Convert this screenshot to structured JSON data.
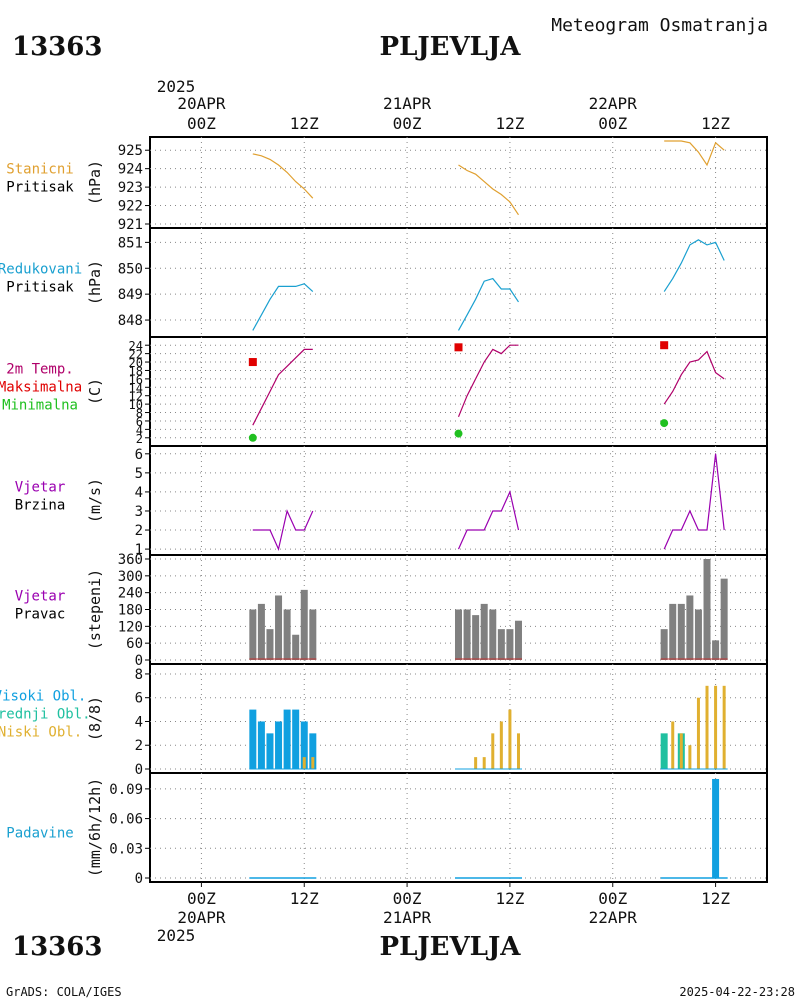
{
  "header": {
    "station_id": "13363",
    "station_name": "PLJEVLJA",
    "meteogram_title": "Meteogram Osmatranja",
    "footer_left": "GrADS: COLA/IGES",
    "footer_right": "2025-04-22-23:28"
  },
  "time_axis": {
    "year": "2025",
    "top_dates": [
      "20APR",
      "21APR",
      "22APR"
    ],
    "hour_labels": [
      "00Z",
      "12Z",
      "00Z",
      "12Z",
      "00Z",
      "12Z"
    ],
    "bottom_dates": [
      "20APR",
      "21APR",
      "22APR"
    ],
    "x_range_hours": [
      -6,
      66
    ]
  },
  "colors": {
    "pressure": "#e0a030",
    "reduced": "#1aa0d0",
    "tmax": "#e00000",
    "tmin": "#20c020",
    "tcurve": "#b0006a",
    "wind": "#9a00b0",
    "winddir": "#808080",
    "high_cloud": "#10a0e0",
    "mid_cloud": "#20c0a0",
    "low_cloud": "#e0b030",
    "precip": "#10a0e0",
    "pad_label": "#1aa0d0"
  },
  "chart_data": [
    {
      "type": "line",
      "labels": [
        "Stanicni",
        "Pritisak"
      ],
      "unit": "(hPa)",
      "ylim": [
        921,
        925.5
      ],
      "yticks": [
        921,
        922,
        923,
        924,
        925
      ],
      "series": [
        {
          "x": [
            6,
            7,
            8,
            9,
            10,
            11,
            12,
            13
          ],
          "y": [
            924.8,
            924.7,
            924.5,
            924.2,
            923.8,
            923.3,
            922.9,
            922.4
          ]
        },
        {
          "x": [
            30,
            31,
            32,
            33,
            34,
            35,
            36,
            37
          ],
          "y": [
            924.2,
            923.9,
            923.7,
            923.3,
            922.9,
            922.6,
            922.2,
            921.5
          ]
        },
        {
          "x": [
            54,
            55,
            56,
            57,
            58,
            59,
            60,
            61
          ],
          "y": [
            925.5,
            925.5,
            925.5,
            925.4,
            924.9,
            924.2,
            925.4,
            925.0
          ]
        }
      ]
    },
    {
      "type": "line",
      "labels": [
        "Redukovani",
        "Pritisak"
      ],
      "unit": "(hPa)",
      "ylim": [
        847.5,
        851.4
      ],
      "yticks": [
        848,
        849,
        850,
        851
      ],
      "series": [
        {
          "x": [
            6,
            7,
            8,
            9,
            10,
            11,
            12,
            13
          ],
          "y": [
            847.6,
            848.2,
            848.8,
            849.3,
            849.3,
            849.3,
            849.4,
            849.1
          ]
        },
        {
          "x": [
            30,
            31,
            32,
            33,
            34,
            35,
            36,
            37
          ],
          "y": [
            847.6,
            848.2,
            848.8,
            849.5,
            849.6,
            849.2,
            849.2,
            848.7
          ]
        },
        {
          "x": [
            54,
            55,
            56,
            57,
            58,
            59,
            60,
            61
          ],
          "y": [
            849.1,
            849.6,
            850.2,
            850.9,
            851.1,
            850.9,
            851.0,
            850.3
          ]
        }
      ]
    },
    {
      "type": "line",
      "labels": [
        "2m Temp.",
        "Maksimalna",
        "Minimalna"
      ],
      "unit": "(C)",
      "ylim": [
        1,
        25
      ],
      "yticks": [
        2,
        4,
        6,
        8,
        10,
        12,
        14,
        16,
        18,
        20,
        22,
        24
      ],
      "series": [
        {
          "x": [
            6,
            7,
            8,
            9,
            10,
            11,
            12,
            13
          ],
          "y": [
            5,
            9,
            13,
            17,
            19,
            21,
            23,
            23
          ]
        },
        {
          "x": [
            30,
            31,
            32,
            33,
            34,
            35,
            36,
            37
          ],
          "y": [
            7,
            12,
            16,
            20,
            23,
            22,
            24,
            24
          ]
        },
        {
          "x": [
            54,
            55,
            56,
            57,
            58,
            59,
            60,
            61
          ],
          "y": [
            10,
            13,
            17,
            20,
            20.5,
            22.5,
            17.5,
            16
          ]
        }
      ],
      "tmax": {
        "x": [
          6,
          30,
          54
        ],
        "y": [
          20,
          23.5,
          24
        ]
      },
      "tmin": {
        "x": [
          6,
          30,
          54
        ],
        "y": [
          2,
          3,
          5.5
        ]
      }
    },
    {
      "type": "line",
      "labels": [
        "Vjetar",
        "Brzina"
      ],
      "unit": "(m/s)",
      "ylim": [
        0.9,
        6.2
      ],
      "yticks": [
        1,
        2,
        3,
        4,
        5,
        6
      ],
      "series": [
        {
          "x": [
            6,
            7,
            8,
            9,
            10,
            11,
            12,
            13
          ],
          "y": [
            2,
            2,
            2,
            1,
            3,
            2,
            2,
            3
          ]
        },
        {
          "x": [
            30,
            31,
            32,
            33,
            34,
            35,
            36,
            37
          ],
          "y": [
            1,
            2,
            2,
            2,
            3,
            3,
            4,
            2
          ]
        },
        {
          "x": [
            54,
            55,
            56,
            57,
            58,
            59,
            60,
            61
          ],
          "y": [
            1,
            2,
            2,
            3,
            2,
            2,
            6,
            2
          ]
        }
      ]
    },
    {
      "type": "bar",
      "labels": [
        "Vjetar",
        "Pravac"
      ],
      "unit": "(stepeni)",
      "ylim": [
        0,
        360
      ],
      "yticks": [
        0,
        60,
        120,
        180,
        240,
        300,
        360
      ],
      "series": [
        {
          "x": [
            6,
            7,
            8,
            9,
            10,
            11,
            12,
            13
          ],
          "y": [
            180,
            200,
            110,
            230,
            180,
            90,
            250,
            180
          ]
        },
        {
          "x": [
            30,
            31,
            32,
            33,
            34,
            35,
            36,
            37
          ],
          "y": [
            180,
            180,
            160,
            200,
            180,
            110,
            110,
            140
          ]
        },
        {
          "x": [
            54,
            55,
            56,
            57,
            58,
            59,
            60,
            61
          ],
          "y": [
            110,
            200,
            200,
            230,
            180,
            360,
            70,
            290
          ]
        }
      ]
    },
    {
      "type": "bar",
      "labels": [
        "Visoki Obl.",
        "Srednji Obl.",
        "Niski Obl."
      ],
      "unit": "(8/8)",
      "ylim": [
        0,
        8.5
      ],
      "yticks": [
        0,
        2,
        4,
        6,
        8
      ],
      "high": [
        {
          "x": 6,
          "y": 5
        },
        {
          "x": 7,
          "y": 4
        },
        {
          "x": 8,
          "y": 3
        },
        {
          "x": 9,
          "y": 4
        },
        {
          "x": 10,
          "y": 5
        },
        {
          "x": 11,
          "y": 5
        },
        {
          "x": 12,
          "y": 4
        },
        {
          "x": 13,
          "y": 3
        }
      ],
      "mid": [
        {
          "x": 54,
          "y": 3
        },
        {
          "x": 56,
          "y": 3
        }
      ],
      "low": [
        {
          "x": 12,
          "y": 1
        },
        {
          "x": 13,
          "y": 1
        },
        {
          "x": 32,
          "y": 1
        },
        {
          "x": 33,
          "y": 1
        },
        {
          "x": 34,
          "y": 3
        },
        {
          "x": 35,
          "y": 4
        },
        {
          "x": 36,
          "y": 5
        },
        {
          "x": 37,
          "y": 3
        },
        {
          "x": 55,
          "y": 4
        },
        {
          "x": 56,
          "y": 3
        },
        {
          "x": 57,
          "y": 2
        },
        {
          "x": 58,
          "y": 6
        },
        {
          "x": 59,
          "y": 7
        },
        {
          "x": 60,
          "y": 7
        },
        {
          "x": 61,
          "y": 7
        }
      ]
    },
    {
      "type": "bar",
      "labels": [
        "Padavine"
      ],
      "unit": "(mm/6h/12h)",
      "ylim": [
        0,
        0.102
      ],
      "yticks": [
        0,
        0.03,
        0.06,
        0.09
      ],
      "ytick_labels": [
        "0",
        "0.03",
        "0.06",
        "0.09"
      ],
      "series": [
        {
          "x": [
            60
          ],
          "y": [
            0.1
          ]
        }
      ]
    }
  ]
}
